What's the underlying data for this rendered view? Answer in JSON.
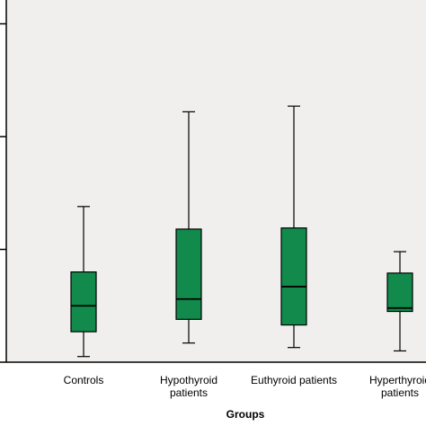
{
  "chart_data": {
    "type": "box",
    "xlabel": "Groups",
    "ylabel": "",
    "ylim": [
      0,
      40
    ],
    "yticks": [
      0,
      10,
      20,
      30
    ],
    "categories": [
      [
        "Controls"
      ],
      [
        "Hypothyroid",
        "patients"
      ],
      [
        "Euthyroid patients"
      ],
      [
        "Hyperthyroid",
        "patients"
      ]
    ],
    "boxes": [
      {
        "min": 0.5,
        "q1": 2.7,
        "median": 5.0,
        "q3": 8.0,
        "max": 13.8
      },
      {
        "min": 1.7,
        "q1": 3.8,
        "median": 5.6,
        "q3": 11.8,
        "max": 22.2
      },
      {
        "min": 1.3,
        "q1": 3.3,
        "median": 6.7,
        "q3": 11.9,
        "max": 22.7
      },
      {
        "min": 1.0,
        "q1": 4.5,
        "median": 4.8,
        "q3": 7.9,
        "max": 9.8
      }
    ],
    "grid": false,
    "background_color": "#f0efed",
    "box_color": "#118a4b"
  }
}
